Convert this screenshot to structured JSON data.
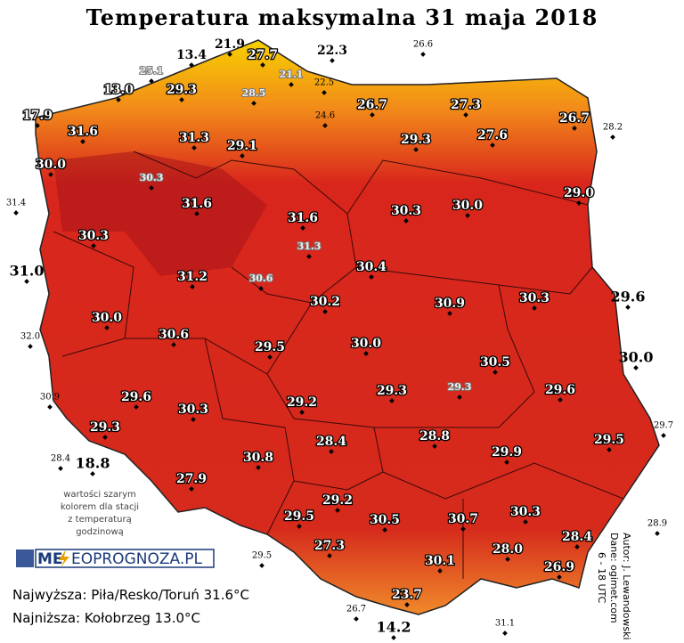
{
  "title": "Temperatura maksymalna 31 maja 2018",
  "stations": [
    "13.4",
    "21.9",
    "22.3",
    "26.6",
    "25.1",
    "27.7",
    "21.1",
    "22.5",
    "13.0",
    "29.3",
    "28.5",
    "24.6",
    "26.7",
    "27.3",
    "26.7",
    "28.2",
    "17.9",
    "31.6",
    "31.3",
    "29.1",
    "29.3",
    "27.6",
    "30.0",
    "30.3",
    "29.0",
    "31.4",
    "31.6",
    "31.6",
    "30.3",
    "30.0",
    "30.3",
    "31.3",
    "31.0",
    "31.2",
    "30.6",
    "30.4",
    "30.2",
    "30.9",
    "30.3",
    "29.6",
    "30.0",
    "32.0",
    "30.6",
    "29.5",
    "30.0",
    "30.0",
    "30.5",
    "30.9",
    "29.6",
    "29.3",
    "29.3",
    "29.6",
    "30.3",
    "29.2",
    "29.7",
    "29.3",
    "28.4",
    "28.8",
    "29.5",
    "18.8",
    "28.4",
    "29.9",
    "30.8",
    "27.9",
    "29.2",
    "29.5",
    "30.5",
    "30.7",
    "30.3",
    "28.9",
    "28.4",
    "28.0",
    "27.3",
    "29.5",
    "30.1",
    "26.9",
    "23.7",
    "26.7",
    "14.2",
    "31.1"
  ],
  "note": [
    "wartości szarym",
    "kolorem dla stacji",
    "z temperaturą",
    "godzinową"
  ],
  "logo": {
    "left": "ME",
    "right": "EOPROGNOZA.PL"
  },
  "footer": {
    "max": "Najwyższa: Piła/Resko/Toruń 31.6°C",
    "min": "Najniższa: Kołobrzeg 13.0°C"
  },
  "credits": [
    "Autor: J. Lewandowski",
    "Dane: ogimet.com",
    "6 - 18 UTC"
  ]
}
